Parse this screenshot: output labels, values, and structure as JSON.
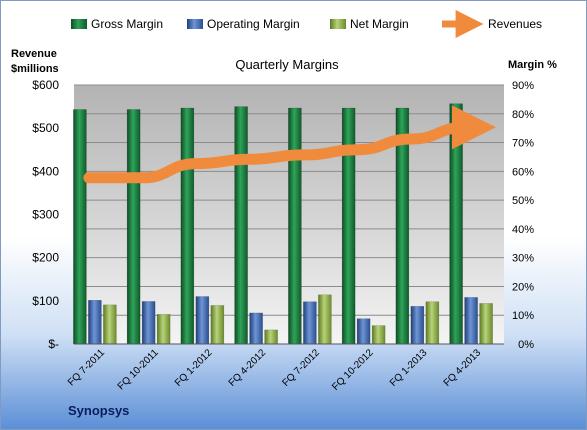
{
  "chart_data": {
    "type": "bar",
    "title": "Quarterly Margins",
    "company": "Synopsys",
    "left_axis_label": [
      "Revenue",
      "$millions"
    ],
    "right_axis_label": "Margin %",
    "categories": [
      "FQ 7-2011",
      "FQ 10-2011",
      "FQ 1-2012",
      "FQ 4-2012",
      "FQ 7-2012",
      "FQ 10-2012",
      "FQ 1-2013",
      "FQ 4-2013"
    ],
    "left_ticks": [
      "$-",
      "$100",
      "$200",
      "$300",
      "$400",
      "$500",
      "$600"
    ],
    "right_ticks": [
      "0%",
      "10%",
      "20%",
      "30%",
      "40%",
      "50%",
      "60%",
      "70%",
      "80%",
      "90%"
    ],
    "left_range": [
      0,
      600
    ],
    "right_range": [
      0,
      90
    ],
    "legend_position": "top",
    "grid": true,
    "series": [
      {
        "name": "Gross Margin",
        "axis": "right",
        "color": "#1f7a3e",
        "values": [
          81.5,
          81.5,
          82,
          82.5,
          82,
          82,
          82,
          83.5
        ]
      },
      {
        "name": "Operating Margin",
        "axis": "right",
        "color": "#3d67b3",
        "values": [
          15.2,
          14.8,
          16.5,
          10.8,
          14.7,
          8.8,
          13.1,
          16.2
        ]
      },
      {
        "name": "Net Margin",
        "axis": "right",
        "color": "#8fae4a",
        "values": [
          13.6,
          10.3,
          13.4,
          4.9,
          17.1,
          6.4,
          14.7,
          14.1
        ]
      },
      {
        "name": "Revenues",
        "axis": "left",
        "color": "#f08a3c",
        "type": "line",
        "values": [
          385,
          385,
          418,
          428,
          438,
          450,
          475,
          502
        ]
      }
    ]
  }
}
